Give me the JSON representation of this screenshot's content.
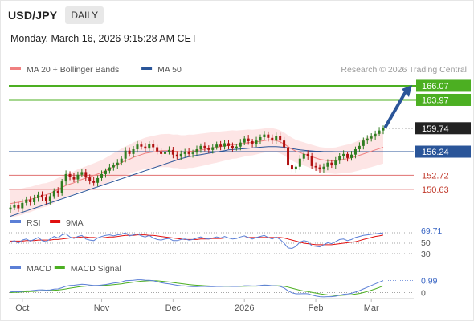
{
  "header": {
    "pair": "USD/JPY",
    "timeframe": "DAILY",
    "timestamp": "Monday, March 16, 2026 9:15:28 AM CET"
  },
  "legend": {
    "main": [
      {
        "label": "MA 20 + Bollinger Bands",
        "color": "#f08080"
      },
      {
        "label": "MA 50",
        "color": "#2a5599"
      }
    ],
    "rsi": [
      {
        "label": "RSI",
        "color": "#5b7fd6"
      },
      {
        "label": "9MA",
        "color": "#e01010"
      }
    ],
    "macd": [
      {
        "label": "MACD",
        "color": "#5b7fd6"
      },
      {
        "label": "MACD Signal",
        "color": "#4caf22"
      }
    ]
  },
  "watermark": "Research © 2026 Trading Central",
  "colors": {
    "up_candle": "#2e7d1f",
    "down_candle": "#b01010",
    "target": "#4caf22",
    "pivot": "#2a5599",
    "support": "#e07070",
    "current": "#222222",
    "band_fill": "#fde0e0",
    "arrow": "#2a5599"
  },
  "chart_data": [
    {
      "type": "candlestick",
      "title": "USD/JPY Daily",
      "x": [
        "Oct",
        "Nov",
        "Dec",
        "2026",
        "Feb",
        "Mar"
      ],
      "ylim": [
        147.5,
        167.5
      ],
      "closes": [
        147.9,
        148.3,
        147.8,
        148.6,
        149.1,
        148.7,
        149.3,
        149.8,
        149.4,
        148.9,
        149.6,
        150.4,
        150.1,
        151.8,
        152.9,
        152.5,
        152.1,
        152.8,
        153.2,
        152.4,
        151.9,
        151.6,
        152.3,
        152.9,
        153.4,
        153.9,
        154.2,
        154.6,
        155.2,
        156.4,
        155.9,
        156.6,
        157.3,
        157.0,
        156.7,
        157.4,
        156.9,
        156.3,
        155.9,
        156.2,
        156.5,
        155.8,
        155.5,
        155.9,
        156.2,
        155.9,
        156.1,
        156.6,
        157.1,
        156.8,
        156.5,
        156.9,
        157.3,
        157.0,
        157.5,
        157.1,
        156.8,
        157.0,
        157.6,
        158.2,
        157.8,
        157.4,
        157.9,
        158.4,
        158.8,
        158.3,
        157.9,
        158.6,
        157.9,
        156.9,
        154.2,
        153.6,
        154.0,
        155.2,
        155.9,
        155.6,
        154.1,
        153.9,
        153.6,
        154.0,
        154.6,
        154.2,
        154.9,
        155.6,
        155.9,
        155.3,
        155.8,
        156.6,
        157.1,
        157.9,
        158.2,
        158.5,
        158.9,
        159.4,
        159.74
      ],
      "ma20": [
        148.5,
        148.6,
        148.7,
        148.8,
        149.0,
        149.1,
        149.3,
        149.5,
        149.7,
        149.8,
        150.0,
        150.3,
        150.6,
        150.9,
        151.2,
        151.4,
        151.6,
        151.9,
        152.1,
        152.3,
        152.5,
        152.7,
        152.9,
        153.1,
        153.4,
        153.7,
        154.0,
        154.3,
        154.6,
        154.9,
        155.1,
        155.4,
        155.6,
        155.8,
        156.0,
        156.1,
        156.2,
        156.3,
        156.4,
        156.4,
        156.4,
        156.3,
        156.3,
        156.2,
        156.2,
        156.3,
        156.3,
        156.4,
        156.5,
        156.6,
        156.7,
        156.8,
        156.9,
        157.0,
        157.1,
        157.2,
        157.3,
        157.3,
        157.4,
        157.5,
        157.6,
        157.6,
        157.7,
        157.8,
        157.9,
        158.0,
        158.0,
        157.9,
        157.7,
        157.4,
        157.0,
        156.6,
        156.3,
        156.1,
        155.9,
        155.7,
        155.5,
        155.3,
        155.1,
        155.0,
        154.9,
        154.9,
        154.9,
        155.0,
        155.1,
        155.2,
        155.3,
        155.5,
        155.7,
        155.9,
        156.1,
        156.3,
        156.5,
        156.7,
        156.9
      ],
      "ma50": [
        146.6,
        146.8,
        147.0,
        147.2,
        147.4,
        147.6,
        147.8,
        148.0,
        148.2,
        148.4,
        148.6,
        148.8,
        149.0,
        149.2,
        149.4,
        149.6,
        149.8,
        150.0,
        150.2,
        150.4,
        150.6,
        150.8,
        151.0,
        151.2,
        151.4,
        151.6,
        151.8,
        152.0,
        152.2,
        152.4,
        152.6,
        152.8,
        153.0,
        153.2,
        153.4,
        153.6,
        153.8,
        154.0,
        154.2,
        154.4,
        154.6,
        154.8,
        155.0,
        155.2,
        155.35,
        155.5,
        155.6,
        155.7,
        155.8,
        155.9,
        156.0,
        156.1,
        156.2,
        156.3,
        156.4,
        156.5,
        156.55,
        156.6,
        156.65,
        156.7,
        156.75,
        156.8,
        156.85,
        156.9,
        156.95,
        157.0,
        157.0,
        157.0,
        156.95,
        156.9,
        156.8,
        156.7,
        156.6,
        156.5,
        156.45,
        156.4,
        156.35,
        156.3,
        156.3,
        156.25,
        156.25,
        156.25,
        156.24,
        156.24,
        156.24,
        156.24,
        156.24,
        156.24,
        156.24,
        156.24,
        156.24,
        156.24,
        156.24,
        156.24,
        156.24
      ],
      "levels": [
        {
          "value": 166.07,
          "label": "166.07",
          "kind": "target"
        },
        {
          "value": 163.97,
          "label": "163.97",
          "kind": "target"
        },
        {
          "value": 159.74,
          "label": "159.74",
          "kind": "current"
        },
        {
          "value": 156.24,
          "label": "156.24",
          "kind": "pivot"
        },
        {
          "value": 152.72,
          "label": "152.72",
          "kind": "support"
        },
        {
          "value": 150.63,
          "label": "150.63",
          "kind": "support"
        }
      ]
    },
    {
      "type": "line",
      "title": "RSI",
      "ylim": [
        30,
        70
      ],
      "tick_labels": [
        "50",
        "30"
      ],
      "last_value": "69.71",
      "series": [
        {
          "name": "RSI",
          "values": [
            52,
            55,
            50,
            56,
            58,
            54,
            57,
            61,
            55,
            53,
            58,
            63,
            60,
            66,
            68,
            62,
            59,
            63,
            65,
            58,
            56,
            55,
            60,
            63,
            65,
            66,
            64,
            66,
            67,
            70,
            64,
            66,
            68,
            64,
            62,
            65,
            60,
            57,
            56,
            58,
            59,
            55,
            55,
            57,
            58,
            56,
            57,
            60,
            62,
            59,
            58,
            60,
            62,
            60,
            63,
            60,
            58,
            59,
            62,
            64,
            61,
            58,
            61,
            63,
            65,
            61,
            58,
            62,
            57,
            50,
            41,
            40,
            44,
            52,
            55,
            53,
            45,
            44,
            43,
            47,
            51,
            49,
            53,
            57,
            58,
            55,
            57,
            61,
            63,
            65,
            66,
            67,
            68,
            69,
            69.71
          ]
        },
        {
          "name": "9MA",
          "values": [
            54,
            54,
            54,
            54,
            55,
            55,
            55,
            56,
            56,
            56,
            56,
            57,
            57,
            58,
            59,
            60,
            61,
            61,
            62,
            62,
            61,
            61,
            60,
            60,
            61,
            62,
            62,
            63,
            64,
            65,
            65,
            65,
            66,
            66,
            66,
            65,
            65,
            64,
            63,
            62,
            61,
            60,
            59,
            58,
            57,
            57,
            57,
            57,
            58,
            58,
            58,
            59,
            59,
            59,
            60,
            60,
            60,
            60,
            60,
            60,
            61,
            61,
            61,
            61,
            61,
            61,
            61,
            61,
            61,
            60,
            58,
            56,
            54,
            52,
            50,
            49,
            48,
            47,
            47,
            47,
            47,
            47,
            48,
            49,
            50,
            51,
            52,
            53,
            55,
            57,
            59,
            61,
            63,
            64,
            65.5
          ]
        }
      ]
    },
    {
      "type": "line",
      "title": "MACD",
      "ylim": [
        -0.5,
        1.5
      ],
      "tick_labels": [
        "0"
      ],
      "last_value": "0.99",
      "series": [
        {
          "name": "MACD",
          "values": [
            0.05,
            0.08,
            0.06,
            0.1,
            0.14,
            0.15,
            0.18,
            0.22,
            0.23,
            0.2,
            0.22,
            0.28,
            0.3,
            0.4,
            0.52,
            0.58,
            0.6,
            0.64,
            0.68,
            0.66,
            0.62,
            0.58,
            0.58,
            0.62,
            0.66,
            0.72,
            0.78,
            0.82,
            0.88,
            0.98,
            1.0,
            1.02,
            1.06,
            1.06,
            1.03,
            1.02,
            0.98,
            0.9,
            0.82,
            0.76,
            0.72,
            0.66,
            0.6,
            0.56,
            0.54,
            0.5,
            0.48,
            0.48,
            0.5,
            0.5,
            0.48,
            0.48,
            0.5,
            0.5,
            0.52,
            0.52,
            0.5,
            0.5,
            0.52,
            0.56,
            0.56,
            0.54,
            0.55,
            0.58,
            0.62,
            0.6,
            0.56,
            0.56,
            0.5,
            0.38,
            0.15,
            -0.02,
            -0.1,
            -0.1,
            -0.08,
            -0.1,
            -0.2,
            -0.28,
            -0.34,
            -0.36,
            -0.34,
            -0.34,
            -0.3,
            -0.22,
            -0.14,
            -0.12,
            -0.06,
            0.04,
            0.16,
            0.3,
            0.44,
            0.58,
            0.72,
            0.86,
            0.99
          ]
        },
        {
          "name": "MACD Signal",
          "values": [
            0.0,
            0.02,
            0.03,
            0.05,
            0.07,
            0.08,
            0.1,
            0.13,
            0.15,
            0.16,
            0.17,
            0.19,
            0.21,
            0.25,
            0.3,
            0.36,
            0.41,
            0.46,
            0.5,
            0.53,
            0.55,
            0.56,
            0.57,
            0.58,
            0.6,
            0.62,
            0.65,
            0.68,
            0.72,
            0.77,
            0.82,
            0.86,
            0.9,
            0.94,
            0.96,
            0.98,
            0.98,
            0.97,
            0.94,
            0.91,
            0.87,
            0.83,
            0.78,
            0.74,
            0.7,
            0.66,
            0.63,
            0.6,
            0.58,
            0.56,
            0.54,
            0.53,
            0.52,
            0.52,
            0.52,
            0.52,
            0.51,
            0.51,
            0.51,
            0.52,
            0.53,
            0.53,
            0.53,
            0.54,
            0.55,
            0.56,
            0.56,
            0.56,
            0.55,
            0.52,
            0.45,
            0.36,
            0.27,
            0.19,
            0.13,
            0.08,
            0.02,
            -0.04,
            -0.1,
            -0.15,
            -0.19,
            -0.22,
            -0.24,
            -0.24,
            -0.22,
            -0.2,
            -0.17,
            -0.13,
            -0.07,
            0.0,
            0.09,
            0.19,
            0.3,
            0.42,
            0.55
          ]
        }
      ]
    }
  ]
}
